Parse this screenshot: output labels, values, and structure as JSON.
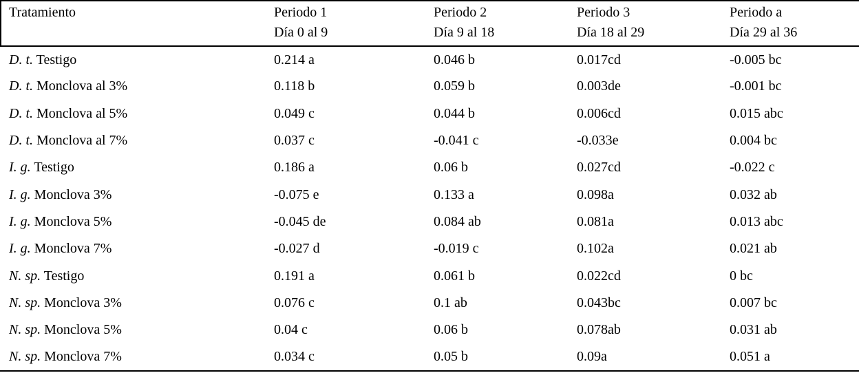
{
  "table": {
    "columns": [
      {
        "title": "Tratamiento",
        "subtitle": ""
      },
      {
        "title": "Periodo 1",
        "subtitle": "Día 0 al 9"
      },
      {
        "title": "Periodo 2",
        "subtitle": "Día 9 al 18"
      },
      {
        "title": "Periodo 3",
        "subtitle": "Día 18 al 29"
      },
      {
        "title": "Periodo a",
        "subtitle": "Día 29 al 36"
      }
    ],
    "rows": [
      {
        "prefix": "D. t.",
        "label": "Testigo",
        "values": [
          "0.214 a",
          "0.046 b",
          "0.017cd",
          "-0.005 bc"
        ]
      },
      {
        "prefix": "D. t.",
        "label": "Monclova al 3%",
        "values": [
          "0.118 b",
          "0.059 b",
          "0.003de",
          "-0.001 bc"
        ]
      },
      {
        "prefix": "D. t.",
        "label": "Monclova al 5%",
        "values": [
          "0.049 c",
          "0.044 b",
          "0.006cd",
          "0.015 abc"
        ]
      },
      {
        "prefix": "D. t.",
        "label": "Monclova al 7%",
        "values": [
          "0.037 c",
          "-0.041 c",
          "-0.033e",
          "0.004 bc"
        ]
      },
      {
        "prefix": "I. g.",
        "label": "Testigo",
        "values": [
          "0.186 a",
          "0.06 b",
          "0.027cd",
          "-0.022 c"
        ]
      },
      {
        "prefix": "I. g.",
        "label": "Monclova 3%",
        "values": [
          "-0.075 e",
          "0.133 a",
          "0.098a",
          "0.032 ab"
        ]
      },
      {
        "prefix": "I. g.",
        "label": "Monclova 5%",
        "values": [
          "-0.045 de",
          "0.084 ab",
          "0.081a",
          "0.013 abc"
        ]
      },
      {
        "prefix": "I. g.",
        "label": "Monclova 7%",
        "values": [
          "-0.027 d",
          "-0.019 c",
          "0.102a",
          "0.021 ab"
        ]
      },
      {
        "prefix": "N. sp.",
        "label": "Testigo",
        "values": [
          "0.191 a",
          "0.061 b",
          "0.022cd",
          "0 bc"
        ]
      },
      {
        "prefix": "N. sp.",
        "label": "Monclova 3%",
        "values": [
          "0.076 c",
          "0.1 ab",
          "0.043bc",
          "0.007 bc"
        ]
      },
      {
        "prefix": "N. sp.",
        "label": "Monclova 5%",
        "values": [
          "0.04 c",
          "0.06 b",
          "0.078ab",
          "0.031 ab"
        ]
      },
      {
        "prefix": "N. sp.",
        "label": "Monclova 7%",
        "values": [
          "0.034 c",
          "0.05 b",
          "0.09a",
          "0.051 a"
        ]
      }
    ],
    "colors": {
      "border": "#000000",
      "text": "#000000",
      "background": "#ffffff"
    }
  }
}
